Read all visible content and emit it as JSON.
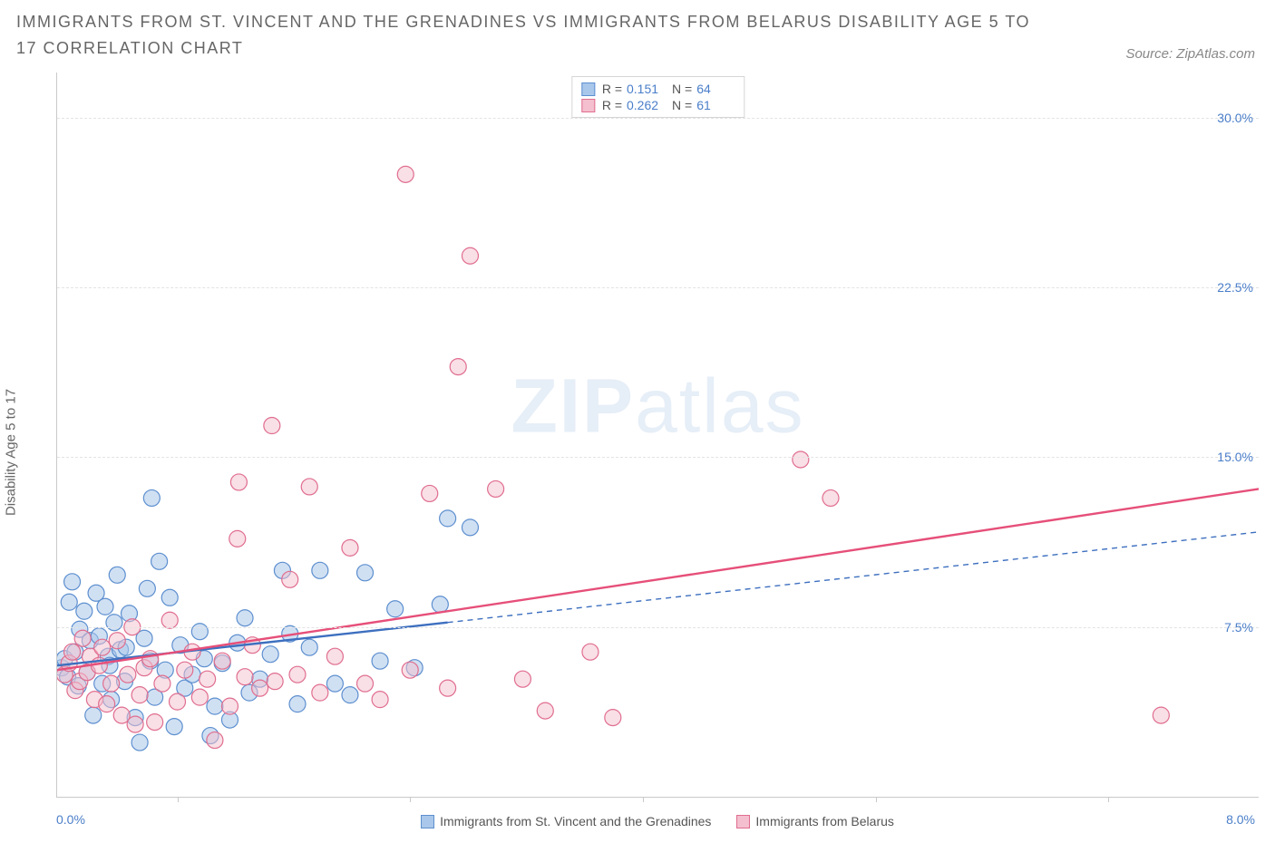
{
  "title": "IMMIGRANTS FROM ST. VINCENT AND THE GRENADINES VS IMMIGRANTS FROM BELARUS DISABILITY AGE 5 TO 17 CORRELATION CHART",
  "source": "Source: ZipAtlas.com",
  "ylabel": "Disability Age 5 to 17",
  "watermark_bold": "ZIP",
  "watermark_light": "atlas",
  "chart": {
    "type": "scatter-with-regression",
    "background_color": "#ffffff",
    "grid_color": "#e3e3e3",
    "axis_color": "#c9c9c9",
    "label_color": "#666666",
    "value_color": "#4a7ec9",
    "x_min": 0.0,
    "x_max": 8.0,
    "y_min": 0.0,
    "y_max": 32.0,
    "y_ticks": [
      7.5,
      15.0,
      22.5,
      30.0
    ],
    "y_tick_labels": [
      "7.5%",
      "15.0%",
      "22.5%",
      "30.0%"
    ],
    "x_tick_positions": [
      0.8,
      2.35,
      3.9,
      5.45,
      7.0
    ],
    "x_left_label": "0.0%",
    "x_right_label": "8.0%",
    "title_fontsize": 18,
    "label_fontsize": 15,
    "tick_fontsize": 14,
    "marker_radius": 9,
    "marker_stroke_width": 1.2,
    "line_width": 2.4
  },
  "series": [
    {
      "key": "svg",
      "name": "Immigrants from St. Vincent and the Grenadines",
      "fill": "#a9c7ea",
      "stroke": "#5d8fcf",
      "fill_opacity": 0.55,
      "R": "0.151",
      "N": "64",
      "regression": {
        "x1": 0.0,
        "y1": 5.8,
        "x2": 2.6,
        "y2": 7.7,
        "dashed_to_x": 8.0,
        "dashed_to_y": 11.7,
        "color": "#3d6fbf"
      },
      "points": [
        [
          0.03,
          5.7
        ],
        [
          0.05,
          6.1
        ],
        [
          0.07,
          5.3
        ],
        [
          0.08,
          8.6
        ],
        [
          0.1,
          9.5
        ],
        [
          0.12,
          6.4
        ],
        [
          0.14,
          4.9
        ],
        [
          0.15,
          7.4
        ],
        [
          0.18,
          8.2
        ],
        [
          0.2,
          5.5
        ],
        [
          0.22,
          6.9
        ],
        [
          0.24,
          3.6
        ],
        [
          0.26,
          9.0
        ],
        [
          0.28,
          7.1
        ],
        [
          0.3,
          5.0
        ],
        [
          0.32,
          8.4
        ],
        [
          0.34,
          6.2
        ],
        [
          0.36,
          4.3
        ],
        [
          0.38,
          7.7
        ],
        [
          0.4,
          9.8
        ],
        [
          0.42,
          6.5
        ],
        [
          0.45,
          5.1
        ],
        [
          0.48,
          8.1
        ],
        [
          0.52,
          3.5
        ],
        [
          0.55,
          2.4
        ],
        [
          0.58,
          7.0
        ],
        [
          0.6,
          9.2
        ],
        [
          0.62,
          6.0
        ],
        [
          0.65,
          4.4
        ],
        [
          0.68,
          10.4
        ],
        [
          0.72,
          5.6
        ],
        [
          0.75,
          8.8
        ],
        [
          0.78,
          3.1
        ],
        [
          0.82,
          6.7
        ],
        [
          0.85,
          4.8
        ],
        [
          0.63,
          13.2
        ],
        [
          0.9,
          5.4
        ],
        [
          0.95,
          7.3
        ],
        [
          0.98,
          6.1
        ],
        [
          1.02,
          2.7
        ],
        [
          1.05,
          4.0
        ],
        [
          1.1,
          5.9
        ],
        [
          1.15,
          3.4
        ],
        [
          1.2,
          6.8
        ],
        [
          1.25,
          7.9
        ],
        [
          1.28,
          4.6
        ],
        [
          1.35,
          5.2
        ],
        [
          1.42,
          6.3
        ],
        [
          1.5,
          10.0
        ],
        [
          1.55,
          7.2
        ],
        [
          1.6,
          4.1
        ],
        [
          1.68,
          6.6
        ],
        [
          1.75,
          10.0
        ],
        [
          1.85,
          5.0
        ],
        [
          1.95,
          4.5
        ],
        [
          2.05,
          9.9
        ],
        [
          2.15,
          6.0
        ],
        [
          2.25,
          8.3
        ],
        [
          2.38,
          5.7
        ],
        [
          2.55,
          8.5
        ],
        [
          2.6,
          12.3
        ],
        [
          2.75,
          11.9
        ],
        [
          0.46,
          6.6
        ],
        [
          0.35,
          5.8
        ]
      ]
    },
    {
      "key": "belarus",
      "name": "Immigrants from Belarus",
      "fill": "#f4bfce",
      "stroke": "#e06d8f",
      "fill_opacity": 0.5,
      "R": "0.262",
      "N": "61",
      "regression": {
        "x1": 0.0,
        "y1": 5.6,
        "x2": 8.0,
        "y2": 13.6,
        "color": "#e64f79"
      },
      "points": [
        [
          0.05,
          5.4
        ],
        [
          0.08,
          5.9
        ],
        [
          0.1,
          6.4
        ],
        [
          0.12,
          4.7
        ],
        [
          0.15,
          5.1
        ],
        [
          0.17,
          7.0
        ],
        [
          0.2,
          5.5
        ],
        [
          0.22,
          6.2
        ],
        [
          0.25,
          4.3
        ],
        [
          0.28,
          5.8
        ],
        [
          0.3,
          6.6
        ],
        [
          0.33,
          4.1
        ],
        [
          0.36,
          5.0
        ],
        [
          0.4,
          6.9
        ],
        [
          0.43,
          3.6
        ],
        [
          0.47,
          5.4
        ],
        [
          0.5,
          7.5
        ],
        [
          0.55,
          4.5
        ],
        [
          0.58,
          5.7
        ],
        [
          0.62,
          6.1
        ],
        [
          0.65,
          3.3
        ],
        [
          0.7,
          5.0
        ],
        [
          0.75,
          7.8
        ],
        [
          0.8,
          4.2
        ],
        [
          0.85,
          5.6
        ],
        [
          0.9,
          6.4
        ],
        [
          0.95,
          4.4
        ],
        [
          1.0,
          5.2
        ],
        [
          1.05,
          2.5
        ],
        [
          1.1,
          6.0
        ],
        [
          1.15,
          4.0
        ],
        [
          1.2,
          11.4
        ],
        [
          1.25,
          5.3
        ],
        [
          1.3,
          6.7
        ],
        [
          1.21,
          13.9
        ],
        [
          1.35,
          4.8
        ],
        [
          1.43,
          16.4
        ],
        [
          1.45,
          5.1
        ],
        [
          1.55,
          9.6
        ],
        [
          1.6,
          5.4
        ],
        [
          1.68,
          13.7
        ],
        [
          1.75,
          4.6
        ],
        [
          1.85,
          6.2
        ],
        [
          1.95,
          11.0
        ],
        [
          2.05,
          5.0
        ],
        [
          2.15,
          4.3
        ],
        [
          2.32,
          27.5
        ],
        [
          2.35,
          5.6
        ],
        [
          2.48,
          13.4
        ],
        [
          2.6,
          4.8
        ],
        [
          2.67,
          19.0
        ],
        [
          2.75,
          23.9
        ],
        [
          2.92,
          13.6
        ],
        [
          3.1,
          5.2
        ],
        [
          3.25,
          3.8
        ],
        [
          3.55,
          6.4
        ],
        [
          3.7,
          3.5
        ],
        [
          4.95,
          14.9
        ],
        [
          5.15,
          13.2
        ],
        [
          7.35,
          3.6
        ],
        [
          0.52,
          3.2
        ]
      ]
    }
  ],
  "bottom_legend": [
    {
      "label": "Immigrants from St. Vincent and the Grenadines",
      "fill": "#a9c7ea",
      "stroke": "#5d8fcf"
    },
    {
      "label": "Immigrants from Belarus",
      "fill": "#f4bfce",
      "stroke": "#e06d8f"
    }
  ]
}
